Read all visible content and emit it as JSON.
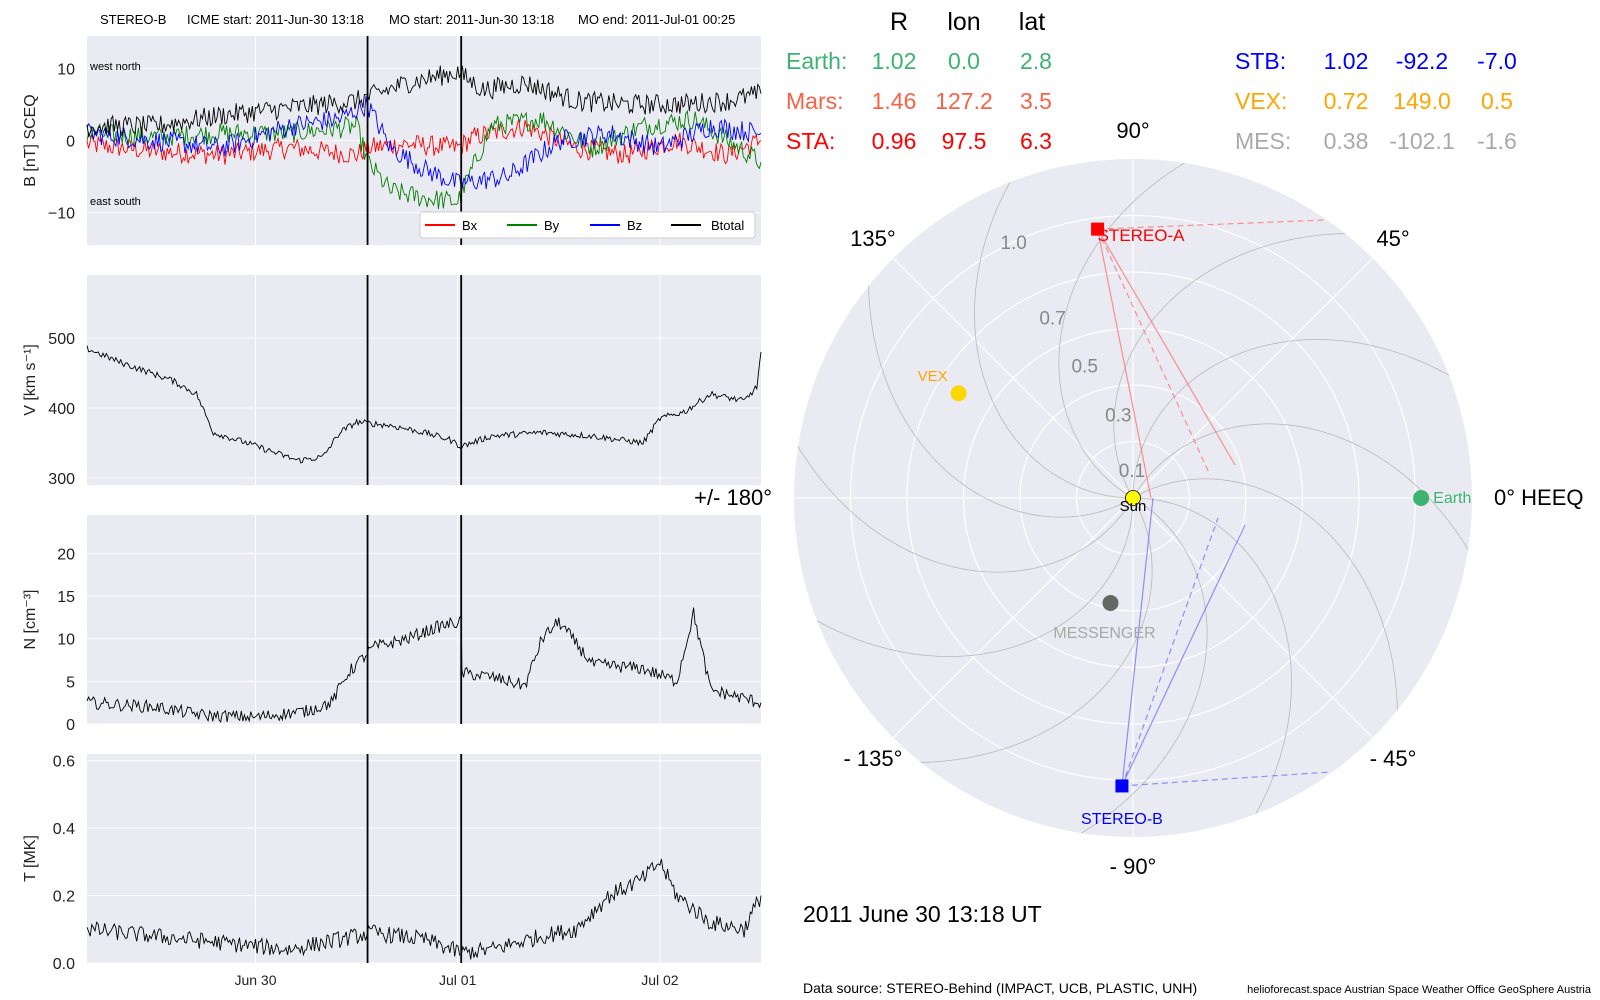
{
  "header": {
    "spacecraft": "STEREO-B",
    "icme_start": "ICME start: 2011-Jun-30 13:18",
    "mo_start": "MO start: 2011-Jun-30 13:18",
    "mo_end": "MO end: 2011-Jul-01 00:25"
  },
  "colors": {
    "panel_bg": "#eaeaf2",
    "grid": "#ffffff",
    "bx": "#ff0000",
    "by": "#007f00",
    "bz": "#0000ff",
    "bt": "#000000",
    "earth": "#3cb371",
    "mars": "#fa6246",
    "sta": "#ff0000",
    "stb": "#0000ff",
    "vex": "#ffa500",
    "mes": "#a9a9a9",
    "sun": "#ffff00",
    "messenger_dot": "#666666"
  },
  "time_axis": {
    "start": "2011-06-29T04:00",
    "end": "2011-07-02T12:00",
    "ticks": [
      {
        "label": "Jun 30",
        "time": "2011-06-30T00:00"
      },
      {
        "label": "Jul 01",
        "time": "2011-07-01T00:00"
      },
      {
        "label": "Jul 02",
        "time": "2011-07-02T00:00"
      }
    ],
    "event_lines": [
      "2011-06-30T13:18",
      "2011-07-01T00:25"
    ]
  },
  "chart_data": [
    {
      "type": "line",
      "name": "B",
      "ylabel": "B [nT] SCEQ",
      "ylim": [
        -14.5,
        14.5
      ],
      "yticks": [
        {
          "v": 10,
          "label": "10"
        },
        {
          "v": 0,
          "label": "0"
        },
        {
          "v": -10,
          "label": "−10"
        }
      ],
      "annotations": {
        "top": "west    north",
        "bottom": "east    south"
      },
      "legend": "bottom-right",
      "series": [
        {
          "name": "Bx",
          "color": "#ff0000",
          "points": [
            [
              "2011-06-29T04:00",
              -0.5
            ],
            [
              "2011-06-29T12:00",
              -1.5
            ],
            [
              "2011-06-29T20:00",
              -2
            ],
            [
              "2011-06-30T04:00",
              -1
            ],
            [
              "2011-06-30T12:00",
              -2
            ],
            [
              "2011-06-30T13:18",
              -1
            ],
            [
              "2011-06-30T18:00",
              -0.5
            ],
            [
              "2011-07-01T00:00",
              -1
            ],
            [
              "2011-07-01T02:00",
              0.5
            ],
            [
              "2011-07-01T08:00",
              2
            ],
            [
              "2011-07-01T14:00",
              -1
            ],
            [
              "2011-07-01T20:00",
              -2
            ],
            [
              "2011-07-02T02:00",
              0
            ],
            [
              "2011-07-02T08:00",
              -2
            ],
            [
              "2011-07-02T12:00",
              0
            ]
          ]
        },
        {
          "name": "By",
          "color": "#007f00",
          "points": [
            [
              "2011-06-29T04:00",
              1
            ],
            [
              "2011-06-29T12:00",
              0.5
            ],
            [
              "2011-06-29T20:00",
              1
            ],
            [
              "2011-06-30T04:00",
              1
            ],
            [
              "2011-06-30T12:00",
              2
            ],
            [
              "2011-06-30T13:18",
              -3
            ],
            [
              "2011-06-30T16:00",
              -7
            ],
            [
              "2011-06-30T20:00",
              -8
            ],
            [
              "2011-07-01T00:00",
              -8.5
            ],
            [
              "2011-07-01T04:00",
              2
            ],
            [
              "2011-07-01T10:00",
              3
            ],
            [
              "2011-07-01T16:00",
              -1
            ],
            [
              "2011-07-01T22:00",
              2
            ],
            [
              "2011-07-02T04:00",
              3
            ],
            [
              "2011-07-02T12:00",
              -3
            ]
          ]
        },
        {
          "name": "Bz",
          "color": "#0000ff",
          "points": [
            [
              "2011-06-29T04:00",
              1
            ],
            [
              "2011-06-29T12:00",
              0
            ],
            [
              "2011-06-29T20:00",
              -1
            ],
            [
              "2011-06-30T04:00",
              2
            ],
            [
              "2011-06-30T10:00",
              3
            ],
            [
              "2011-06-30T13:18",
              5
            ],
            [
              "2011-06-30T16:00",
              -1
            ],
            [
              "2011-06-30T20:00",
              -4
            ],
            [
              "2011-07-01T00:00",
              -6
            ],
            [
              "2011-07-01T06:00",
              -5
            ],
            [
              "2011-07-01T12:00",
              0
            ],
            [
              "2011-07-01T18:00",
              1
            ],
            [
              "2011-07-02T00:00",
              -1
            ],
            [
              "2011-07-02T06:00",
              2
            ],
            [
              "2011-07-02T12:00",
              1
            ]
          ]
        },
        {
          "name": "Btotal",
          "color": "#000000",
          "points": [
            [
              "2011-06-29T04:00",
              2
            ],
            [
              "2011-06-29T12:00",
              2
            ],
            [
              "2011-06-29T20:00",
              3.5
            ],
            [
              "2011-06-30T04:00",
              4.5
            ],
            [
              "2011-06-30T12:00",
              5.5
            ],
            [
              "2011-06-30T13:18",
              6
            ],
            [
              "2011-06-30T18:00",
              8
            ],
            [
              "2011-07-01T00:00",
              9.5
            ],
            [
              "2011-07-01T03:00",
              7
            ],
            [
              "2011-07-01T08:00",
              8
            ],
            [
              "2011-07-01T14:00",
              5.5
            ],
            [
              "2011-07-01T20:00",
              5
            ],
            [
              "2011-07-02T02:00",
              5
            ],
            [
              "2011-07-02T08:00",
              5.5
            ],
            [
              "2011-07-02T12:00",
              6.5
            ]
          ]
        }
      ]
    },
    {
      "type": "line",
      "name": "V",
      "ylabel": "V [km s⁻¹]",
      "ylim": [
        290,
        590
      ],
      "yticks": [
        {
          "v": 500,
          "label": "500"
        },
        {
          "v": 400,
          "label": "400"
        },
        {
          "v": 300,
          "label": "300"
        }
      ],
      "series": [
        {
          "name": "V",
          "color": "#000000",
          "points": [
            [
              "2011-06-29T04:00",
              485
            ],
            [
              "2011-06-29T08:00",
              465
            ],
            [
              "2011-06-29T14:00",
              440
            ],
            [
              "2011-06-29T17:00",
              420
            ],
            [
              "2011-06-29T19:00",
              365
            ],
            [
              "2011-06-29T23:00",
              350
            ],
            [
              "2011-06-30T05:00",
              325
            ],
            [
              "2011-06-30T08:00",
              330
            ],
            [
              "2011-06-30T10:00",
              365
            ],
            [
              "2011-06-30T12:00",
              380
            ],
            [
              "2011-06-30T16:00",
              375
            ],
            [
              "2011-06-30T20:00",
              365
            ],
            [
              "2011-06-30T23:00",
              355
            ],
            [
              "2011-07-01T00:25",
              345
            ],
            [
              "2011-07-01T04:00",
              360
            ],
            [
              "2011-07-01T10:00",
              365
            ],
            [
              "2011-07-01T16:00",
              360
            ],
            [
              "2011-07-01T22:00",
              350
            ],
            [
              "2011-07-02T00:00",
              385
            ],
            [
              "2011-07-02T03:00",
              395
            ],
            [
              "2011-07-02T06:00",
              420
            ],
            [
              "2011-07-02T10:00",
              410
            ],
            [
              "2011-07-02T11:30",
              430
            ],
            [
              "2011-07-02T12:00",
              480
            ]
          ]
        }
      ]
    },
    {
      "type": "line",
      "name": "N",
      "ylabel": "N [cm⁻³]",
      "ylim": [
        0,
        24.5
      ],
      "yticks": [
        {
          "v": 20,
          "label": "20"
        },
        {
          "v": 15,
          "label": "15"
        },
        {
          "v": 10,
          "label": "10"
        },
        {
          "v": 5,
          "label": "5"
        },
        {
          "v": 0,
          "label": "0"
        }
      ],
      "series": [
        {
          "name": "N",
          "color": "#000000",
          "points": [
            [
              "2011-06-29T04:00",
              2.5
            ],
            [
              "2011-06-29T12:00",
              2
            ],
            [
              "2011-06-29T18:00",
              1
            ],
            [
              "2011-06-30T00:00",
              0.8
            ],
            [
              "2011-06-30T06:00",
              1.5
            ],
            [
              "2011-06-30T09:00",
              2.5
            ],
            [
              "2011-06-30T11:00",
              6
            ],
            [
              "2011-06-30T14:00",
              9
            ],
            [
              "2011-06-30T18:00",
              10
            ],
            [
              "2011-06-30T22:00",
              11.5
            ],
            [
              "2011-07-01T00:25",
              12
            ],
            [
              "2011-07-01T00:30",
              6
            ],
            [
              "2011-07-01T04:00",
              5.5
            ],
            [
              "2011-07-01T08:00",
              4.5
            ],
            [
              "2011-07-01T10:00",
              10
            ],
            [
              "2011-07-01T12:00",
              12
            ],
            [
              "2011-07-01T16:00",
              7
            ],
            [
              "2011-07-01T22:00",
              6.5
            ],
            [
              "2011-07-02T02:00",
              5
            ],
            [
              "2011-07-02T04:00",
              13
            ],
            [
              "2011-07-02T06:00",
              4
            ],
            [
              "2011-07-02T10:00",
              3
            ],
            [
              "2011-07-02T12:00",
              2.5
            ]
          ]
        }
      ]
    },
    {
      "type": "line",
      "name": "T",
      "ylabel": "T [MK]",
      "ylim": [
        0,
        0.62
      ],
      "yticks": [
        {
          "v": 0.6,
          "label": "0.6"
        },
        {
          "v": 0.4,
          "label": "0.4"
        },
        {
          "v": 0.2,
          "label": "0.2"
        },
        {
          "v": 0.0,
          "label": "0.0"
        }
      ],
      "series": [
        {
          "name": "T",
          "color": "#000000",
          "points": [
            [
              "2011-06-29T04:00",
              0.1
            ],
            [
              "2011-06-29T12:00",
              0.08
            ],
            [
              "2011-06-29T20:00",
              0.06
            ],
            [
              "2011-06-30T04:00",
              0.04
            ],
            [
              "2011-06-30T10:00",
              0.07
            ],
            [
              "2011-06-30T14:00",
              0.09
            ],
            [
              "2011-06-30T20:00",
              0.07
            ],
            [
              "2011-07-01T00:25",
              0.03
            ],
            [
              "2011-07-01T04:00",
              0.04
            ],
            [
              "2011-07-01T10:00",
              0.08
            ],
            [
              "2011-07-01T14:00",
              0.1
            ],
            [
              "2011-07-01T18:00",
              0.2
            ],
            [
              "2011-07-01T22:00",
              0.25
            ],
            [
              "2011-07-02T00:00",
              0.3
            ],
            [
              "2011-07-02T02:00",
              0.2
            ],
            [
              "2011-07-02T06:00",
              0.12
            ],
            [
              "2011-07-02T10:00",
              0.1
            ],
            [
              "2011-07-02T12:00",
              0.2
            ]
          ]
        }
      ]
    },
    {
      "type": "scatter",
      "name": "polar-positions",
      "coordinate_system": "HEEQ",
      "date": "2011 June 30  13:18 UT",
      "angle_labels": [
        {
          "deg": 90,
          "label": "90°"
        },
        {
          "deg": 45,
          "label": "45°"
        },
        {
          "deg": 135,
          "label": "135°"
        },
        {
          "deg": 0,
          "label": "0° HEEQ"
        },
        {
          "deg": 180,
          "label": "+/- 180°"
        },
        {
          "deg": -45,
          "label": "- 45°"
        },
        {
          "deg": -90,
          "label": "- 90°"
        },
        {
          "deg": -135,
          "label": "- 135°"
        }
      ],
      "radial_labels": [
        {
          "r": 0.1,
          "label": "0.1"
        },
        {
          "r": 0.3,
          "label": "0.3"
        },
        {
          "r": 0.5,
          "label": "0.5"
        },
        {
          "r": 0.7,
          "label": "0.7"
        },
        {
          "r": 1.0,
          "label": "1.0"
        }
      ],
      "bodies": [
        {
          "name": "Earth",
          "label": "Earth",
          "r": 1.02,
          "lon": 0.0,
          "color": "#3cb371",
          "marker": "circle"
        },
        {
          "name": "STEREO-A",
          "label": "STEREO-A",
          "r": 0.96,
          "lon": 97.5,
          "color": "#ff0000",
          "marker": "square"
        },
        {
          "name": "STEREO-B",
          "label": "STEREO-B",
          "r": 1.02,
          "lon": -92.2,
          "color": "#0000ff",
          "marker": "square"
        },
        {
          "name": "VEX",
          "label": "VEX",
          "r": 0.72,
          "lon": 149.0,
          "color": "#ffd700",
          "marker": "circle"
        },
        {
          "name": "MESSENGER",
          "label": "MESSENGER",
          "r": 0.38,
          "lon": -102.1,
          "color": "#666666",
          "marker": "circle"
        },
        {
          "name": "Sun",
          "label": "Sun",
          "r": 0.0,
          "lon": 0.0,
          "color": "#ffff00",
          "marker": "circle"
        }
      ]
    }
  ],
  "position_table": {
    "headers": [
      "R",
      "lon",
      "lat"
    ],
    "rows_left": [
      {
        "name": "Earth:",
        "R": "1.02",
        "lon": "0.0",
        "lat": "2.8",
        "color": "#3cb371"
      },
      {
        "name": "Mars:",
        "R": "1.46",
        "lon": "127.2",
        "lat": "3.5",
        "color": "#fa6246"
      },
      {
        "name": "STA:",
        "R": "0.96",
        "lon": "97.5",
        "lat": "6.3",
        "color": "#ff0000"
      }
    ],
    "rows_right": [
      {
        "name": "STB:",
        "R": "1.02",
        "lon": "-92.2",
        "lat": "-7.0",
        "color": "#0000ff"
      },
      {
        "name": "VEX:",
        "R": "0.72",
        "lon": "149.0",
        "lat": "0.5",
        "color": "#ffa500"
      },
      {
        "name": "MES:",
        "R": "0.38",
        "lon": "-102.1",
        "lat": "-1.6",
        "color": "#a9a9a9"
      }
    ]
  },
  "date_label": "2011 June 30  13:18 UT",
  "footer": {
    "data_source": "Data source: STEREO-Behind (IMPACT, UCB, PLASTIC, UNH)",
    "credits": "helioforecast.space   Austrian Space Weather Office   GeoSphere Austria"
  }
}
